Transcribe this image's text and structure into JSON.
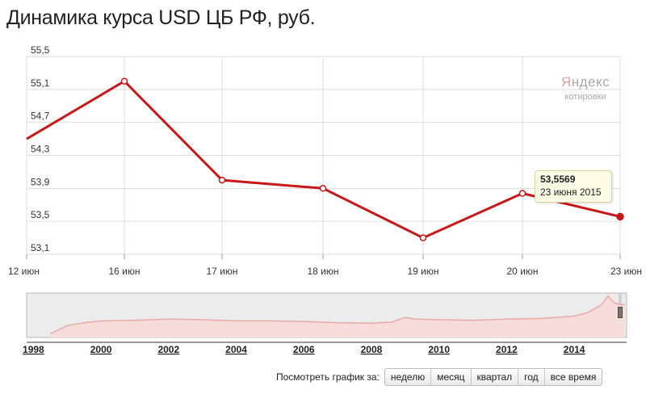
{
  "title": "Динамика курса USD ЦБ РФ, руб.",
  "logo": {
    "brand_first": "Я",
    "brand_rest": "ндекс",
    "subtitle": "котировки"
  },
  "tooltip": {
    "value": "53,5569",
    "date": "23 июня 2015"
  },
  "colors": {
    "line": "#c81818",
    "nav_line": "#e9a9a9",
    "nav_fill": "#f7dcdc",
    "grid": "#dddddd"
  },
  "chart_data": [
    {
      "type": "line",
      "title": "Динамика курса USD ЦБ РФ, руб.",
      "xlabel": "",
      "ylabel": "",
      "categories": [
        "12 июн",
        "16 июн",
        "17 июн",
        "18 июн",
        "19 июн",
        "20 июн",
        "23 июн"
      ],
      "series": [
        {
          "values": [
            54.5,
            55.2,
            54.0,
            53.9,
            53.3,
            53.84,
            53.5569
          ]
        }
      ],
      "y_ticks": [
        "55,5",
        "55,1",
        "54,7",
        "54,3",
        "53,9",
        "53,5",
        "53,1"
      ],
      "ylim": [
        53.1,
        55.5
      ],
      "grid": true
    },
    {
      "type": "area",
      "title": "",
      "x_tick_labels": [
        "1998",
        "2000",
        "2002",
        "2004",
        "2006",
        "2008",
        "2010",
        "2012",
        "2014"
      ],
      "x": [
        1998.5,
        1999.0,
        1999.5,
        2000,
        2001,
        2002,
        2003,
        2004,
        2005,
        2006,
        2007,
        2008,
        2008.6,
        2009.0,
        2009.3,
        2010,
        2011,
        2012,
        2013,
        2014,
        2014.4,
        2014.8,
        2015.0,
        2015.2,
        2015.4,
        2015.5
      ],
      "values": [
        6,
        20,
        25,
        28,
        29,
        31,
        30,
        28,
        28,
        27,
        25,
        24,
        26,
        34,
        31,
        30,
        29,
        31,
        32,
        36,
        42,
        55,
        70,
        58,
        55,
        56
      ],
      "xlim": [
        1997.8,
        2015.55
      ],
      "ylim": [
        0,
        75
      ]
    }
  ],
  "period": {
    "label": "Посмотреть график за:",
    "buttons": [
      "неделю",
      "месяц",
      "квартал",
      "год",
      "все время"
    ]
  }
}
